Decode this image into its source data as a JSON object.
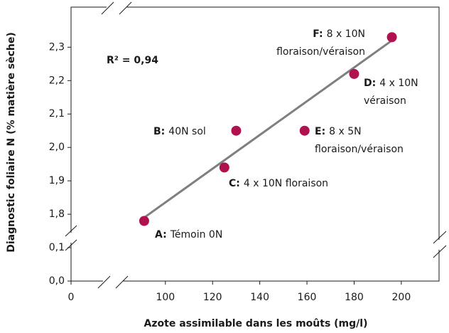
{
  "chart_data": {
    "type": "scatter",
    "xlabel": "Azote assimilable dans les moûts (mg/l)",
    "ylabel": "Diagnostic foliaire N (% matière sèche)",
    "annotation": "R² = 0,94",
    "color": "#b0124f",
    "x": [
      91,
      125,
      130,
      159,
      180,
      196
    ],
    "values": [
      1.78,
      1.94,
      2.05,
      2.05,
      2.22,
      2.33
    ],
    "point_labels": [
      "A:",
      "C:",
      "B:",
      "E:",
      "D:",
      "F:"
    ],
    "point_notes": [
      [
        "Témoin 0N"
      ],
      [
        "4 x 10N floraison"
      ],
      [
        "40N sol"
      ],
      [
        "8 x 5N",
        "floraison/véraison"
      ],
      [
        "4 x 10N",
        "véraison"
      ],
      [
        "8 x 10N",
        "floraison/véraison"
      ]
    ],
    "trendline": {
      "x": [
        91,
        196
      ],
      "values": [
        1.79,
        2.32
      ],
      "color": "#7f7f7f"
    },
    "xlim": [
      0,
      216
    ],
    "xbreak": [
      0,
      60
    ],
    "xticks": [
      0,
      100,
      120,
      140,
      160,
      180,
      200
    ],
    "ylim": [
      0,
      2.42
    ],
    "ybreak": [
      0.1,
      1.7
    ],
    "yticks": [
      {
        "value": 0,
        "label": "0,0"
      },
      {
        "value": 0.1,
        "label": "0,1"
      },
      {
        "value": 1.8,
        "label": "1,8"
      },
      {
        "value": 1.9,
        "label": "1,9"
      },
      {
        "value": 2.0,
        "label": "2,0"
      },
      {
        "value": 2.1,
        "label": "2,1"
      },
      {
        "value": 2.2,
        "label": "2,2"
      },
      {
        "value": 2.3,
        "label": "2,3"
      }
    ]
  }
}
